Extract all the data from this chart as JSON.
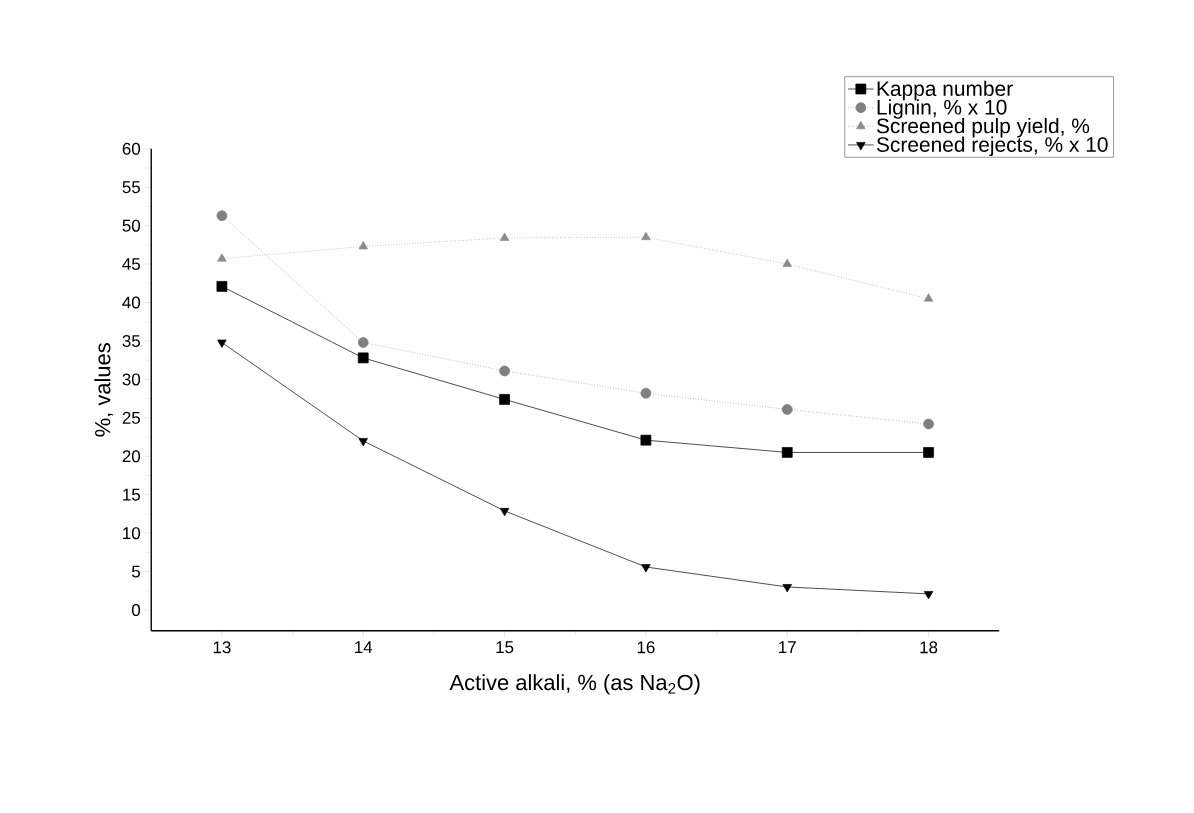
{
  "chart_data": {
    "type": "line",
    "xlabel": "Active alkali, % (as Na$_{2}$O)",
    "ylabel": "%, values",
    "x": [
      13,
      14,
      15,
      16,
      17,
      18
    ],
    "series": [
      {
        "name": "Kappa number",
        "color": "#000000",
        "marker": "square",
        "line_style": "solid",
        "values": [
          42.1,
          32.8,
          27.4,
          22.1,
          20.5,
          20.5
        ]
      },
      {
        "name": "Lignin, % x 10",
        "color": "#808080",
        "marker": "circle",
        "line_style": "dotted",
        "values": [
          51.3,
          34.8,
          31.1,
          28.2,
          26.1,
          24.2
        ]
      },
      {
        "name": "Screened pulp yield, %",
        "color": "#8c8c8c",
        "marker": "triangle",
        "line_style": "dotted",
        "values": [
          45.7,
          47.3,
          48.4,
          48.5,
          45.0,
          40.5
        ]
      },
      {
        "name": "Screened rejects, % x 10",
        "color": "#000000",
        "marker": "triangle-down",
        "line_style": "solid",
        "values": [
          34.8,
          22.0,
          12.9,
          5.6,
          3.0,
          2.1
        ]
      }
    ],
    "xlim": [
      12.5,
      18.5
    ],
    "xticks": [
      13,
      14,
      15,
      16,
      17,
      18
    ],
    "ylim": [
      -2.7,
      60
    ],
    "yticks": [
      0,
      5,
      10,
      15,
      20,
      25,
      30,
      35,
      40,
      45,
      50,
      55,
      60
    ],
    "grid": false,
    "legend": "top right"
  }
}
